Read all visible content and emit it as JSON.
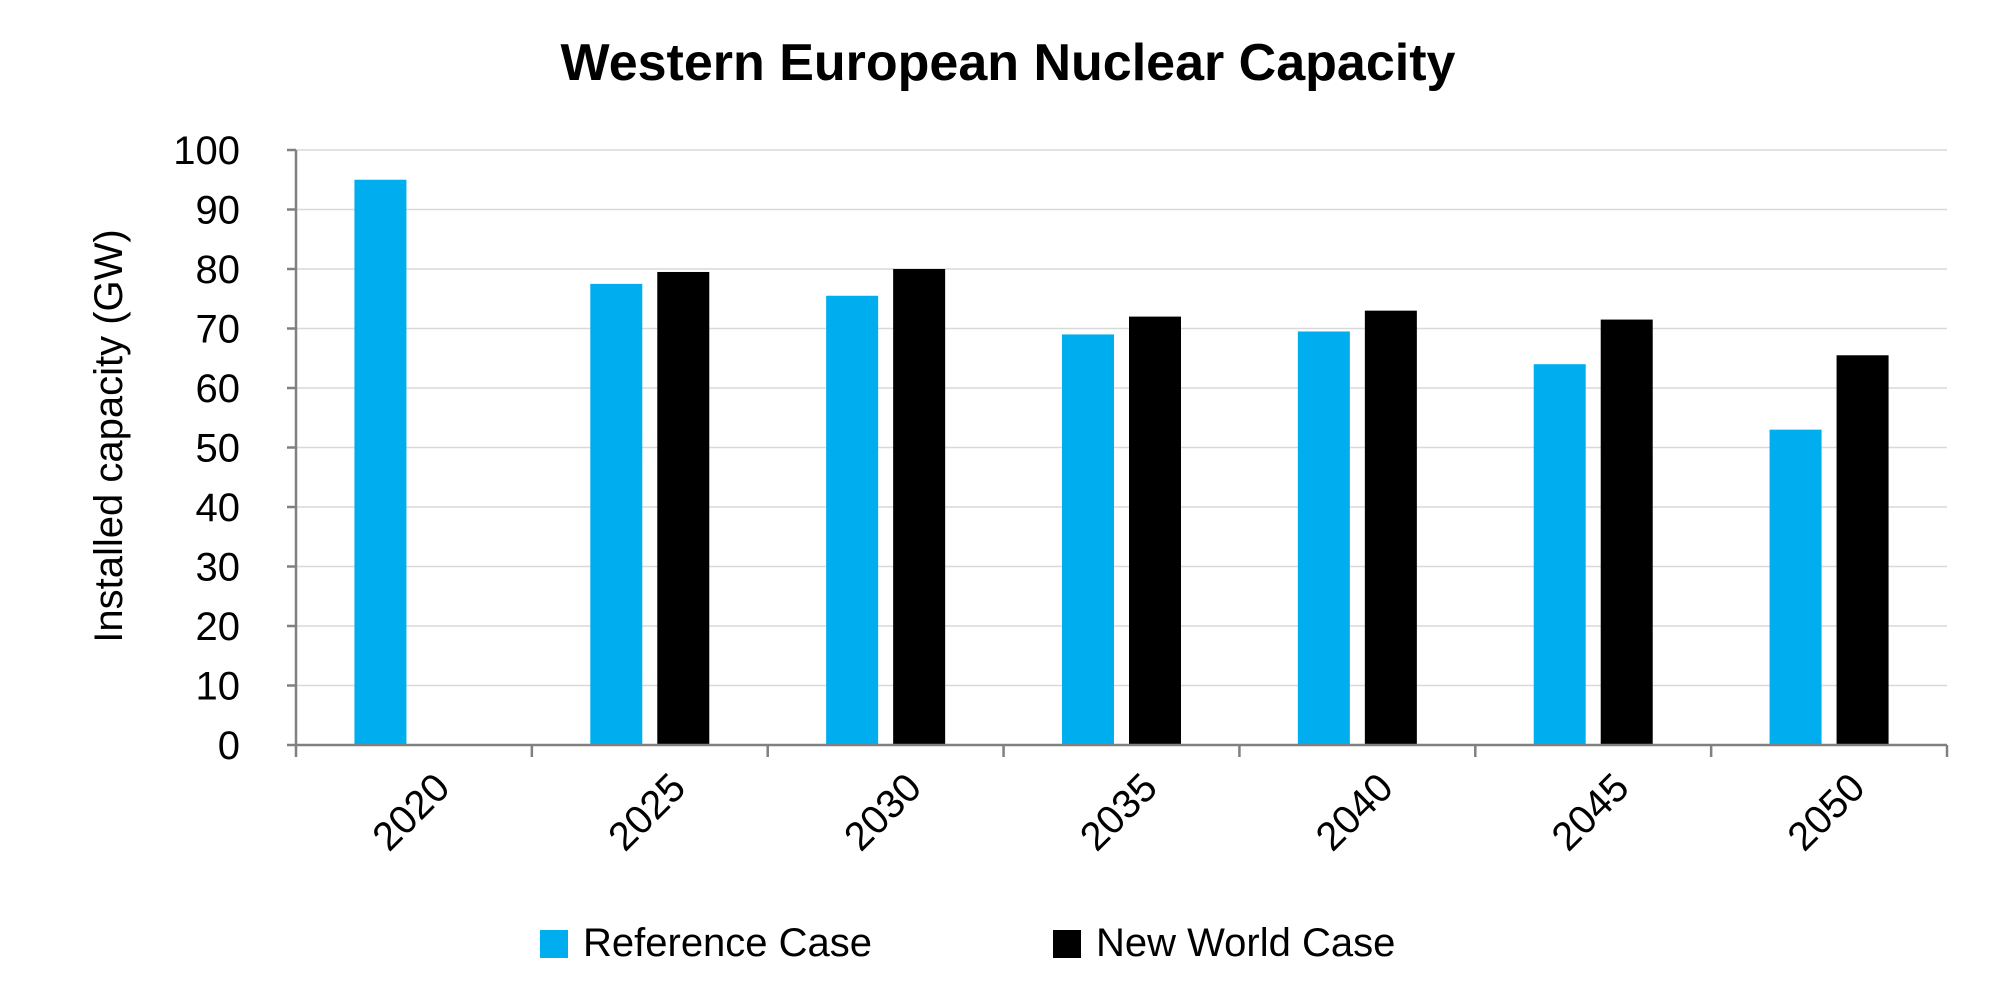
{
  "chart_data": {
    "type": "bar",
    "title": "Western European Nuclear Capacity",
    "xlabel": "",
    "ylabel": "Installed capacity (GW)",
    "ylim": [
      0,
      100
    ],
    "yticks": [
      0,
      10,
      20,
      30,
      40,
      50,
      60,
      70,
      80,
      90,
      100
    ],
    "grid": true,
    "legend_position": "bottom",
    "categories": [
      "2020",
      "2025",
      "2030",
      "2035",
      "2040",
      "2045",
      "2050"
    ],
    "series": [
      {
        "name": "Reference Case",
        "color": "#00AEEF",
        "values": [
          95,
          77.5,
          75.5,
          69,
          69.5,
          64,
          53
        ]
      },
      {
        "name": "New World Case",
        "color": "#000000",
        "values": [
          null,
          79.5,
          80,
          72,
          73,
          71.5,
          65.5
        ]
      }
    ]
  }
}
